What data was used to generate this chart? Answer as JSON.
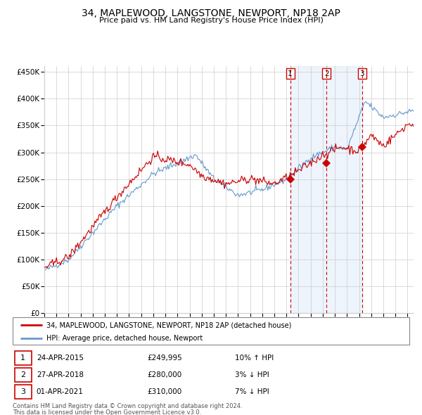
{
  "title": "34, MAPLEWOOD, LANGSTONE, NEWPORT, NP18 2AP",
  "subtitle": "Price paid vs. HM Land Registry's House Price Index (HPI)",
  "legend_line1": "34, MAPLEWOOD, LANGSTONE, NEWPORT, NP18 2AP (detached house)",
  "legend_line2": "HPI: Average price, detached house, Newport",
  "footer1": "Contains HM Land Registry data © Crown copyright and database right 2024.",
  "footer2": "This data is licensed under the Open Government Licence v3.0.",
  "sales": [
    {
      "num": 1,
      "date": "24-APR-2015",
      "price": 249995,
      "hpi_text": "10% ↑ HPI"
    },
    {
      "num": 2,
      "date": "27-APR-2018",
      "price": 280000,
      "hpi_text": "3% ↓ HPI"
    },
    {
      "num": 3,
      "date": "01-APR-2021",
      "price": 310000,
      "hpi_text": "7% ↓ HPI"
    }
  ],
  "sale_dates_decimal": [
    2015.31,
    2018.32,
    2021.25
  ],
  "ylim": [
    0,
    460000
  ],
  "xlim_start": 1995.0,
  "xlim_end": 2025.5,
  "red_color": "#cc0000",
  "blue_color": "#6699cc",
  "blue_fill_color": "#cce0f5",
  "grid_color": "#cccccc",
  "background_color": "#ffffff"
}
